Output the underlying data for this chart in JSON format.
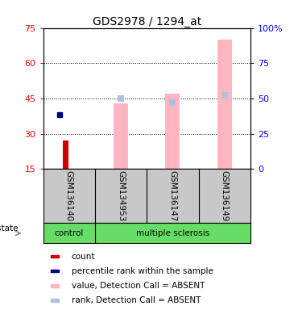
{
  "title": "GDS2978 / 1294_at",
  "samples": [
    "GSM136140",
    "GSM134953",
    "GSM136147",
    "GSM136149"
  ],
  "left_yticks": [
    15,
    30,
    45,
    60,
    75
  ],
  "right_yticks": [
    0,
    25,
    50,
    75,
    100
  ],
  "right_yticklabels": [
    "0",
    "25",
    "50",
    "75",
    "100%"
  ],
  "ylim_left": [
    15,
    75
  ],
  "ylim_right": [
    0,
    100
  ],
  "count_values": {
    "GSM136140": 27
  },
  "percentile_rank_values": {
    "GSM136140": 38
  },
  "value_absent": {
    "GSM134953": 43,
    "GSM136147": 47,
    "GSM136149": 70
  },
  "rank_absent_pct": {
    "GSM134953": 50,
    "GSM136147": 47,
    "GSM136149": 52
  },
  "value_absent_color": "#FFB6C1",
  "rank_absent_color": "#B0C0E0",
  "count_color": "#CC0000",
  "percentile_color": "#000080",
  "bg_plot": "#ffffff",
  "bg_label_area": "#C8C8C8",
  "green_color": "#66DD66",
  "legend_items": [
    {
      "label": "count",
      "color": "#CC0000"
    },
    {
      "label": "percentile rank within the sample",
      "color": "#000080"
    },
    {
      "label": "value, Detection Call = ABSENT",
      "color": "#FFB6C1"
    },
    {
      "label": "rank, Detection Call = ABSENT",
      "color": "#B0C0E0"
    }
  ]
}
